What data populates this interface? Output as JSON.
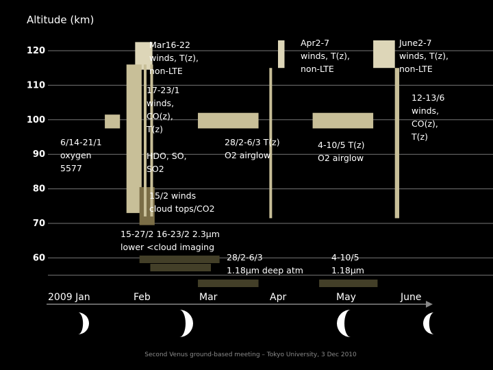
{
  "chart_data": {
    "type": "timeline",
    "ylabel": "Altitude (km)",
    "yticks": [
      "120",
      "110",
      "100",
      "90",
      "80",
      "70",
      "60"
    ],
    "months": [
      "2009 Jan",
      "Feb",
      "Mar",
      "Apr",
      "May",
      "June"
    ],
    "colors": {
      "light": "#ddd6b8",
      "medium": "#c8bf98",
      "dark": "#7a6d46",
      "darkest": "#433f28",
      "grid": "#777777",
      "axis": "#888888"
    },
    "bars": [
      {
        "name": "oxygen-5577-bar",
        "start": "2009-01-14",
        "end": "2009-01-21",
        "alt_low": 97.5,
        "alt_high": 101.5,
        "color": "medium"
      },
      {
        "name": "mar16-22-bar",
        "start": "2009-01-28",
        "end": "2009-02-05",
        "alt_low": 114.5,
        "alt_high": 122.5,
        "color": "light"
      },
      {
        "name": "co-tall-bar",
        "start": "2009-01-24",
        "end": "2009-01-31",
        "alt_low": 73,
        "alt_high": 116,
        "color": "medium"
      },
      {
        "name": "cloud-tops-bar",
        "start": "2009-01-30",
        "end": "2009-02-06",
        "alt_low": 69.5,
        "alt_high": 80.5,
        "color": "dark"
      },
      {
        "name": "thin-bar-1",
        "start": "2009-02-01",
        "end": "2009-02-02",
        "alt_low": 72,
        "alt_high": 116,
        "color": "medium"
      },
      {
        "name": "thin-bar-2",
        "start": "2009-02-04",
        "end": "2009-02-05",
        "alt_low": 72,
        "alt_high": 116,
        "color": "medium"
      },
      {
        "name": "o2-airglow-mar-bar",
        "start": "2009-02-26",
        "end": "2009-03-26",
        "alt_low": 97.5,
        "alt_high": 102,
        "color": "medium"
      },
      {
        "name": "apr-thin-bar",
        "start": "2009-03-31",
        "end": "2009-04-01",
        "alt_low": 71.5,
        "alt_high": 115,
        "color": "medium"
      },
      {
        "name": "apr2-7-bar",
        "start": "2009-04-04",
        "end": "2009-04-07",
        "alt_low": 115,
        "alt_high": 123,
        "color": "light"
      },
      {
        "name": "o2-airglow-may-bar",
        "start": "2009-04-20",
        "end": "2009-05-18",
        "alt_low": 97.5,
        "alt_high": 102,
        "color": "medium"
      },
      {
        "name": "june2-7-bar",
        "start": "2009-05-18",
        "end": "2009-05-28",
        "alt_low": 115,
        "alt_high": 123,
        "color": "light"
      },
      {
        "name": "june-thin-bar",
        "start": "2009-05-28",
        "end": "2009-05-30",
        "alt_low": 71.5,
        "alt_high": 115,
        "color": "medium"
      }
    ],
    "strips": [
      {
        "name": "imaging-strip-1",
        "start": "2009-01-30",
        "end": "2009-03-08",
        "row": 1,
        "color": "darkest"
      },
      {
        "name": "imaging-strip-2",
        "start": "2009-02-04",
        "end": "2009-03-04",
        "row": 2,
        "color": "darkest"
      },
      {
        "name": "deep-atm-mar-strip",
        "start": "2009-02-26",
        "end": "2009-03-26",
        "row": 3,
        "color": "darkest"
      },
      {
        "name": "deep-atm-may-strip",
        "start": "2009-04-23",
        "end": "2009-05-20",
        "row": 3,
        "color": "darkest"
      }
    ],
    "annotations": [
      {
        "name": "oxygen-annotation",
        "lines": [
          "6/14-21/1",
          "oxygen",
          "5577"
        ]
      },
      {
        "name": "mar16-22-annotation",
        "lines": [
          "Mar16-22",
          "winds, T(z),",
          "non-LTE"
        ]
      },
      {
        "name": "co-jan-annotation",
        "lines": [
          "17-23/1",
          "winds,",
          "CO(z),",
          "T(z)"
        ]
      },
      {
        "name": "hdo-annotation",
        "lines": [
          "HDO, SO,",
          "SO2"
        ]
      },
      {
        "name": "cloud-tops-annotation",
        "lines": [
          "15/2 winds",
          "cloud tops/CO2"
        ]
      },
      {
        "name": "imaging-annotation",
        "lines": [
          "15-27/2 16-23/2 2.3μm",
          "lower <cloud imaging"
        ]
      },
      {
        "name": "o2-mar-annotation",
        "lines": [
          "28/2-6/3 T(z)",
          "O2 airglow"
        ]
      },
      {
        "name": "deep-atm-mar-annotation",
        "lines": [
          "28/2-6/3",
          "1.18μm deep atm"
        ]
      },
      {
        "name": "apr2-7-annotation",
        "lines": [
          "Apr2-7",
          "winds, T(z),",
          "non-LTE"
        ]
      },
      {
        "name": "o2-may-annotation",
        "lines": [
          "4-10/5 T(z)",
          "O2 airglow"
        ]
      },
      {
        "name": "deep-atm-may-annotation",
        "lines": [
          "4-10/5",
          "1.18μm"
        ]
      },
      {
        "name": "june2-7-annotation",
        "lines": [
          "June2-7",
          "winds, T(z),",
          "non-LTE"
        ]
      },
      {
        "name": "co-june-annotation",
        "lines": [
          "12-13/6",
          "winds,",
          "CO(z),",
          "T(z)"
        ]
      }
    ],
    "moon_phases": [
      "crescent-waxing-icon",
      "crescent-waxing-icon",
      "crescent-waning-icon",
      "crescent-waning-icon"
    ],
    "grid": true
  },
  "footer": "Second Venus ground-based meeting – Tokyo University, 3 Dec 2010"
}
